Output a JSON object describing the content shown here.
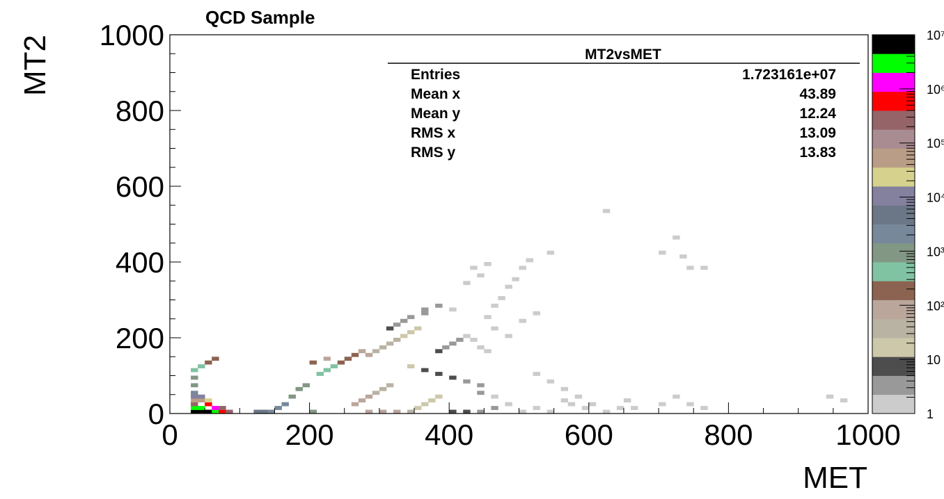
{
  "chart_data": {
    "type": "heatmap",
    "title": "QCD Sample",
    "xlabel": "MET",
    "ylabel": "MT2",
    "xlim": [
      0,
      1000
    ],
    "ylim": [
      0,
      1000
    ],
    "x_ticks": [
      "0",
      "200",
      "400",
      "600",
      "800",
      "1000"
    ],
    "y_ticks": [
      "0",
      "200",
      "400",
      "600",
      "800",
      "1000"
    ],
    "bin_size": 10,
    "z_scale": "log",
    "z_min": 1,
    "z_max": 10000000,
    "colorbar_labels": [
      "1",
      "10",
      "10²",
      "10³",
      "10⁴",
      "10⁵",
      "10⁶",
      "10⁷"
    ],
    "colorbar_colors": [
      "#cccccc",
      "#999999",
      "#4d4d4d",
      "#cdc8a9",
      "#b8b3a2",
      "#bba69c",
      "#8c6350",
      "#80c3a3",
      "#829784",
      "#77889b",
      "#6b7787",
      "#84819f",
      "#d6d28e",
      "#ba9d86",
      "#a98c91",
      "#946468",
      "#ff0000",
      "#ff00ff",
      "#00ff00",
      "#000000"
    ],
    "stats_box": {
      "name": "MT2vsMET",
      "rows": [
        {
          "label": "Entries",
          "value": "1.723161e+07"
        },
        {
          "label": "Mean x",
          "value": "43.89"
        },
        {
          "label": "Mean y",
          "value": "12.24"
        },
        {
          "label": "RMS x",
          "value": "13.09"
        },
        {
          "label": "RMS y",
          "value": "13.83"
        }
      ]
    },
    "bins": [
      [
        30,
        0,
        10000000
      ],
      [
        30,
        10,
        3000000
      ],
      [
        40,
        0,
        8000000
      ],
      [
        40,
        10,
        2000000
      ],
      [
        50,
        0,
        6000000
      ],
      [
        50,
        20,
        600000
      ],
      [
        60,
        0,
        3000000
      ],
      [
        60,
        10,
        1000000
      ],
      [
        30,
        20,
        200000
      ],
      [
        30,
        30,
        60000
      ],
      [
        40,
        30,
        40000
      ],
      [
        50,
        30,
        20000
      ],
      [
        30,
        40,
        10000
      ],
      [
        40,
        40,
        8000
      ],
      [
        30,
        50,
        3000
      ],
      [
        70,
        0,
        700000
      ],
      [
        70,
        10,
        200000
      ],
      [
        80,
        0,
        200000
      ],
      [
        30,
        70,
        1200
      ],
      [
        30,
        90,
        900
      ],
      [
        30,
        110,
        500
      ],
      [
        40,
        120,
        400
      ],
      [
        50,
        130,
        250
      ],
      [
        60,
        140,
        200
      ],
      [
        120,
        0,
        6000
      ],
      [
        130,
        0,
        4000
      ],
      [
        140,
        0,
        3000
      ],
      [
        150,
        10,
        2500
      ],
      [
        160,
        20,
        1500
      ],
      [
        170,
        40,
        1200
      ],
      [
        180,
        60,
        900
      ],
      [
        190,
        70,
        700
      ],
      [
        200,
        0,
        700
      ],
      [
        210,
        100,
        500
      ],
      [
        220,
        110,
        400
      ],
      [
        230,
        120,
        300
      ],
      [
        240,
        130,
        250
      ],
      [
        250,
        140,
        200
      ],
      [
        260,
        150,
        150
      ],
      [
        270,
        160,
        120
      ],
      [
        200,
        130,
        150
      ],
      [
        220,
        140,
        120
      ],
      [
        260,
        20,
        80
      ],
      [
        270,
        30,
        70
      ],
      [
        280,
        40,
        60
      ],
      [
        290,
        50,
        50
      ],
      [
        300,
        60,
        40
      ],
      [
        310,
        70,
        35
      ],
      [
        280,
        0,
        110
      ],
      [
        300,
        0,
        80
      ],
      [
        320,
        0,
        60
      ],
      [
        340,
        0,
        40
      ],
      [
        350,
        10,
        25
      ],
      [
        360,
        20,
        20
      ],
      [
        370,
        30,
        15
      ],
      [
        380,
        40,
        12
      ],
      [
        280,
        150,
        60
      ],
      [
        290,
        160,
        55
      ],
      [
        300,
        170,
        45
      ],
      [
        310,
        180,
        40
      ],
      [
        320,
        190,
        30
      ],
      [
        330,
        200,
        25
      ],
      [
        340,
        210,
        20
      ],
      [
        350,
        220,
        18
      ],
      [
        310,
        220,
        6
      ],
      [
        320,
        230,
        5
      ],
      [
        330,
        240,
        5
      ],
      [
        340,
        250,
        4
      ],
      [
        360,
        260,
        4
      ],
      [
        360,
        270,
        3
      ],
      [
        380,
        280,
        3
      ],
      [
        400,
        270,
        2
      ],
      [
        340,
        120,
        12
      ],
      [
        360,
        110,
        10
      ],
      [
        380,
        100,
        8
      ],
      [
        400,
        90,
        6
      ],
      [
        420,
        80,
        5
      ],
      [
        440,
        70,
        4
      ],
      [
        440,
        50,
        3
      ],
      [
        460,
        40,
        2
      ],
      [
        400,
        0,
        9
      ],
      [
        420,
        0,
        7
      ],
      [
        440,
        0,
        5
      ],
      [
        460,
        10,
        3
      ],
      [
        480,
        20,
        2
      ],
      [
        500,
        0,
        2
      ],
      [
        520,
        10,
        2
      ],
      [
        540,
        0,
        1
      ],
      [
        380,
        160,
        6
      ],
      [
        390,
        170,
        5
      ],
      [
        400,
        180,
        4
      ],
      [
        410,
        190,
        3
      ],
      [
        420,
        200,
        2
      ],
      [
        430,
        190,
        2
      ],
      [
        440,
        170,
        1
      ],
      [
        450,
        160,
        2
      ],
      [
        450,
        250,
        1
      ],
      [
        460,
        280,
        1
      ],
      [
        470,
        300,
        1
      ],
      [
        480,
        330,
        1
      ],
      [
        490,
        350,
        1
      ],
      [
        500,
        380,
        1
      ],
      [
        510,
        400,
        1
      ],
      [
        540,
        420,
        1
      ],
      [
        520,
        100,
        2
      ],
      [
        540,
        80,
        2
      ],
      [
        560,
        60,
        1
      ],
      [
        580,
        40,
        1
      ],
      [
        590,
        10,
        1
      ],
      [
        600,
        20,
        1
      ],
      [
        620,
        0,
        1
      ],
      [
        640,
        10,
        1
      ],
      [
        480,
        200,
        2
      ],
      [
        460,
        220,
        1
      ],
      [
        500,
        240,
        1
      ],
      [
        520,
        260,
        1
      ],
      [
        420,
        340,
        1
      ],
      [
        440,
        360,
        1
      ],
      [
        430,
        380,
        1
      ],
      [
        450,
        390,
        1
      ],
      [
        560,
        30,
        1
      ],
      [
        570,
        20,
        1
      ],
      [
        650,
        30,
        1
      ],
      [
        660,
        10,
        1
      ],
      [
        700,
        20,
        1
      ],
      [
        720,
        40,
        1
      ],
      [
        740,
        20,
        1
      ],
      [
        760,
        10,
        1
      ],
      [
        620,
        530,
        1
      ],
      [
        720,
        460,
        1
      ],
      [
        730,
        410,
        1
      ],
      [
        700,
        420,
        1
      ],
      [
        740,
        380,
        1
      ],
      [
        760,
        380,
        1
      ],
      [
        940,
        40,
        1
      ],
      [
        960,
        30,
        1
      ]
    ]
  }
}
